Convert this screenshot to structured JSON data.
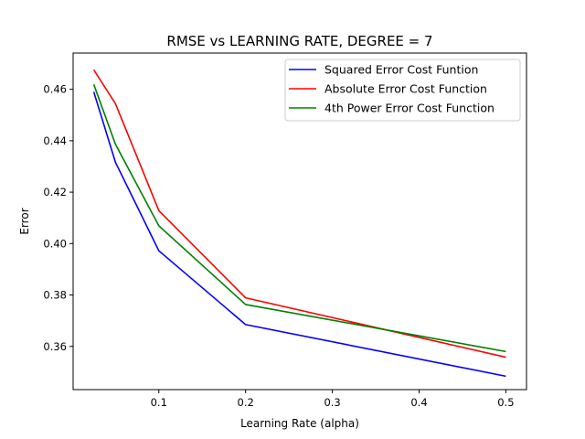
{
  "chart_data": {
    "type": "line",
    "title": "RMSE vs LEARNING RATE, DEGREE = 7",
    "xlabel": "Learning Rate (alpha)",
    "ylabel": "Error",
    "xlim": [
      0.0012,
      0.5238
    ],
    "ylim": [
      0.3432,
      0.4741
    ],
    "xticks": [
      0.1,
      0.2,
      0.3,
      0.4,
      0.5
    ],
    "xtick_labels": [
      "0.1",
      "0.2",
      "0.3",
      "0.4",
      "0.5"
    ],
    "yticks": [
      0.36,
      0.38,
      0.4,
      0.42,
      0.44,
      0.46
    ],
    "ytick_labels": [
      "0.36",
      "0.38",
      "0.40",
      "0.42",
      "0.44",
      "0.46"
    ],
    "grid": false,
    "legend_position": "top-right",
    "x": [
      0.025,
      0.05,
      0.1,
      0.2,
      0.5
    ],
    "series": [
      {
        "name": "Squared Error Cost Funtion",
        "color": "#0000ff",
        "values": [
          0.459,
          0.4316,
          0.3972,
          0.3685,
          0.3484
        ]
      },
      {
        "name": "Absolute Error Cost Function",
        "color": "#ff0000",
        "values": [
          0.4676,
          0.4544,
          0.4128,
          0.3789,
          0.3558
        ]
      },
      {
        "name": "4th Power Error Cost Function",
        "color": "#008000",
        "values": [
          0.4619,
          0.4386,
          0.4069,
          0.3763,
          0.358
        ]
      }
    ]
  }
}
